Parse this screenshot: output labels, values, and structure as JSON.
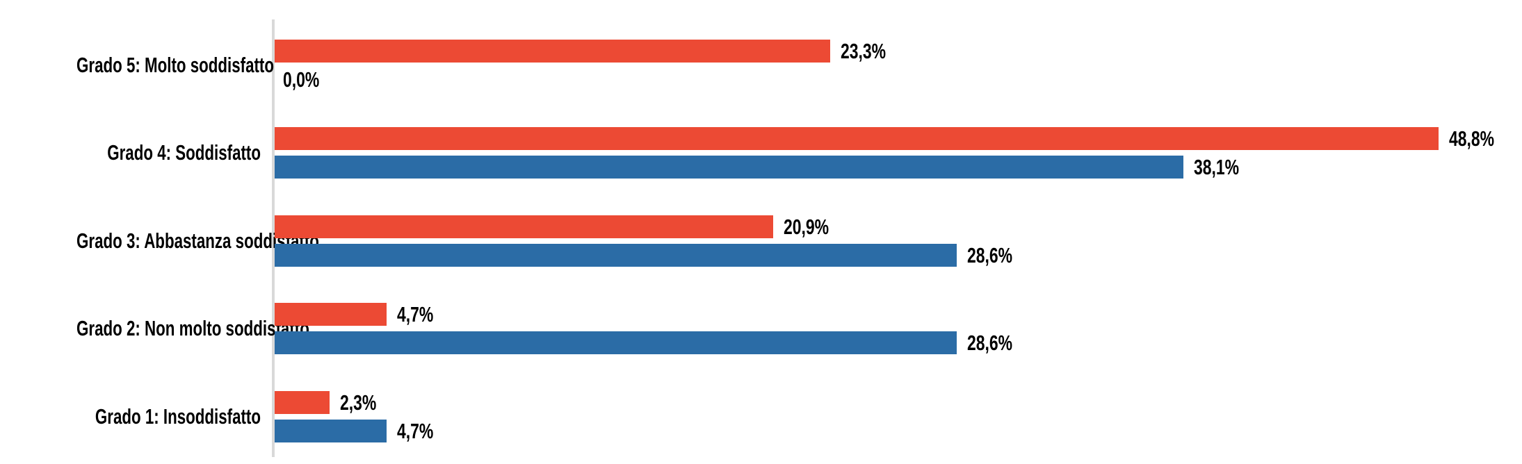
{
  "chart_data": {
    "type": "bar",
    "orientation": "horizontal",
    "title": "",
    "categories": [
      "Grado 5: Molto soddisfatto",
      "Grado 4: Soddisfatto",
      "Grado 3: Abbastanza soddisfatto",
      "Grado 2: Non molto soddisfatto",
      "Grado 1: Insoddisfatto"
    ],
    "series": [
      {
        "position": "top",
        "color": "#EC4A34",
        "values": [
          23.3,
          48.8,
          20.9,
          4.7,
          2.3
        ],
        "labels": [
          "23,3%",
          "48,8%",
          "20,9%",
          "4,7%",
          "2,3%"
        ]
      },
      {
        "position": "bottom",
        "color": "#2B6CA6",
        "values": [
          0.0,
          38.1,
          28.6,
          28.6,
          4.7
        ],
        "labels": [
          "0,0%",
          "38,1%",
          "28,6%",
          "28,6%",
          "4,7%"
        ]
      }
    ],
    "value_format": "percent, comma decimal separator",
    "xlim": [
      0,
      52
    ],
    "legend": "none",
    "grid": "none",
    "axis_line_color": "#D9D9D9",
    "text_color": "#000000",
    "background": "#FFFFFF"
  }
}
